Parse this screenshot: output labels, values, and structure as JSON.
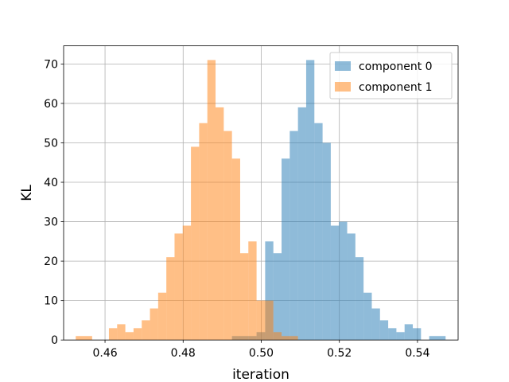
{
  "chart_data": {
    "type": "bar",
    "subtype": "histogram",
    "title": "",
    "xlabel": "iteration",
    "ylabel": "KL",
    "xlim": [
      0.4494,
      0.5504
    ],
    "ylim": [
      0,
      74.6
    ],
    "xticks": [
      "0.46",
      "0.48",
      "0.50",
      "0.52",
      "0.54"
    ],
    "yticks": [
      "0",
      "10",
      "20",
      "30",
      "40",
      "50",
      "60",
      "70"
    ],
    "grid": true,
    "legend_position": "top-right",
    "series": [
      {
        "name": "component 0",
        "color": "#1f77b4",
        "alpha": 0.5,
        "bins": [
          {
            "x0": 0.4925,
            "x1": 0.4946,
            "count": 1
          },
          {
            "x0": 0.4946,
            "x1": 0.4967,
            "count": 1
          },
          {
            "x0": 0.4967,
            "x1": 0.4988,
            "count": 1
          },
          {
            "x0": 0.4988,
            "x1": 0.501,
            "count": 2
          },
          {
            "x0": 0.501,
            "x1": 0.5031,
            "count": 25
          },
          {
            "x0": 0.5031,
            "x1": 0.5052,
            "count": 22
          },
          {
            "x0": 0.5052,
            "x1": 0.5073,
            "count": 46
          },
          {
            "x0": 0.5073,
            "x1": 0.5094,
            "count": 53
          },
          {
            "x0": 0.5094,
            "x1": 0.5115,
            "count": 59
          },
          {
            "x0": 0.5115,
            "x1": 0.5136,
            "count": 71
          },
          {
            "x0": 0.5136,
            "x1": 0.5157,
            "count": 55
          },
          {
            "x0": 0.5157,
            "x1": 0.5178,
            "count": 50
          },
          {
            "x0": 0.5178,
            "x1": 0.5199,
            "count": 29
          },
          {
            "x0": 0.5199,
            "x1": 0.522,
            "count": 30
          },
          {
            "x0": 0.522,
            "x1": 0.5241,
            "count": 27
          },
          {
            "x0": 0.5241,
            "x1": 0.5262,
            "count": 21
          },
          {
            "x0": 0.5262,
            "x1": 0.5283,
            "count": 12
          },
          {
            "x0": 0.5283,
            "x1": 0.5304,
            "count": 8
          },
          {
            "x0": 0.5304,
            "x1": 0.5325,
            "count": 5
          },
          {
            "x0": 0.5325,
            "x1": 0.5346,
            "count": 3
          },
          {
            "x0": 0.5346,
            "x1": 0.5367,
            "count": 2
          },
          {
            "x0": 0.5367,
            "x1": 0.5388,
            "count": 4
          },
          {
            "x0": 0.5388,
            "x1": 0.5409,
            "count": 3
          },
          {
            "x0": 0.5409,
            "x1": 0.543,
            "count": 0
          },
          {
            "x0": 0.543,
            "x1": 0.5451,
            "count": 1
          },
          {
            "x0": 0.5451,
            "x1": 0.5472,
            "count": 1
          }
        ]
      },
      {
        "name": "component 1",
        "color": "#ff7f0e",
        "alpha": 0.5,
        "bins": [
          {
            "x0": 0.4525,
            "x1": 0.4546,
            "count": 1
          },
          {
            "x0": 0.4546,
            "x1": 0.4567,
            "count": 1
          },
          {
            "x0": 0.4567,
            "x1": 0.4588,
            "count": 0
          },
          {
            "x0": 0.4588,
            "x1": 0.461,
            "count": 0
          },
          {
            "x0": 0.461,
            "x1": 0.4631,
            "count": 3
          },
          {
            "x0": 0.4631,
            "x1": 0.4652,
            "count": 4
          },
          {
            "x0": 0.4652,
            "x1": 0.4673,
            "count": 2
          },
          {
            "x0": 0.4673,
            "x1": 0.4694,
            "count": 3
          },
          {
            "x0": 0.4694,
            "x1": 0.4715,
            "count": 5
          },
          {
            "x0": 0.4715,
            "x1": 0.4736,
            "count": 8
          },
          {
            "x0": 0.4736,
            "x1": 0.4757,
            "count": 12
          },
          {
            "x0": 0.4757,
            "x1": 0.4778,
            "count": 21
          },
          {
            "x0": 0.4778,
            "x1": 0.4799,
            "count": 27
          },
          {
            "x0": 0.4799,
            "x1": 0.482,
            "count": 29
          },
          {
            "x0": 0.482,
            "x1": 0.4841,
            "count": 49
          },
          {
            "x0": 0.4841,
            "x1": 0.4862,
            "count": 55
          },
          {
            "x0": 0.4862,
            "x1": 0.4883,
            "count": 71
          },
          {
            "x0": 0.4883,
            "x1": 0.4904,
            "count": 59
          },
          {
            "x0": 0.4904,
            "x1": 0.4925,
            "count": 53
          },
          {
            "x0": 0.4925,
            "x1": 0.4946,
            "count": 46
          },
          {
            "x0": 0.4946,
            "x1": 0.4967,
            "count": 22
          },
          {
            "x0": 0.4967,
            "x1": 0.4988,
            "count": 25
          },
          {
            "x0": 0.4988,
            "x1": 0.501,
            "count": 10
          },
          {
            "x0": 0.501,
            "x1": 0.5031,
            "count": 10
          },
          {
            "x0": 0.5031,
            "x1": 0.5052,
            "count": 2
          },
          {
            "x0": 0.5052,
            "x1": 0.5073,
            "count": 1
          },
          {
            "x0": 0.5073,
            "x1": 0.5094,
            "count": 1
          }
        ]
      }
    ]
  }
}
